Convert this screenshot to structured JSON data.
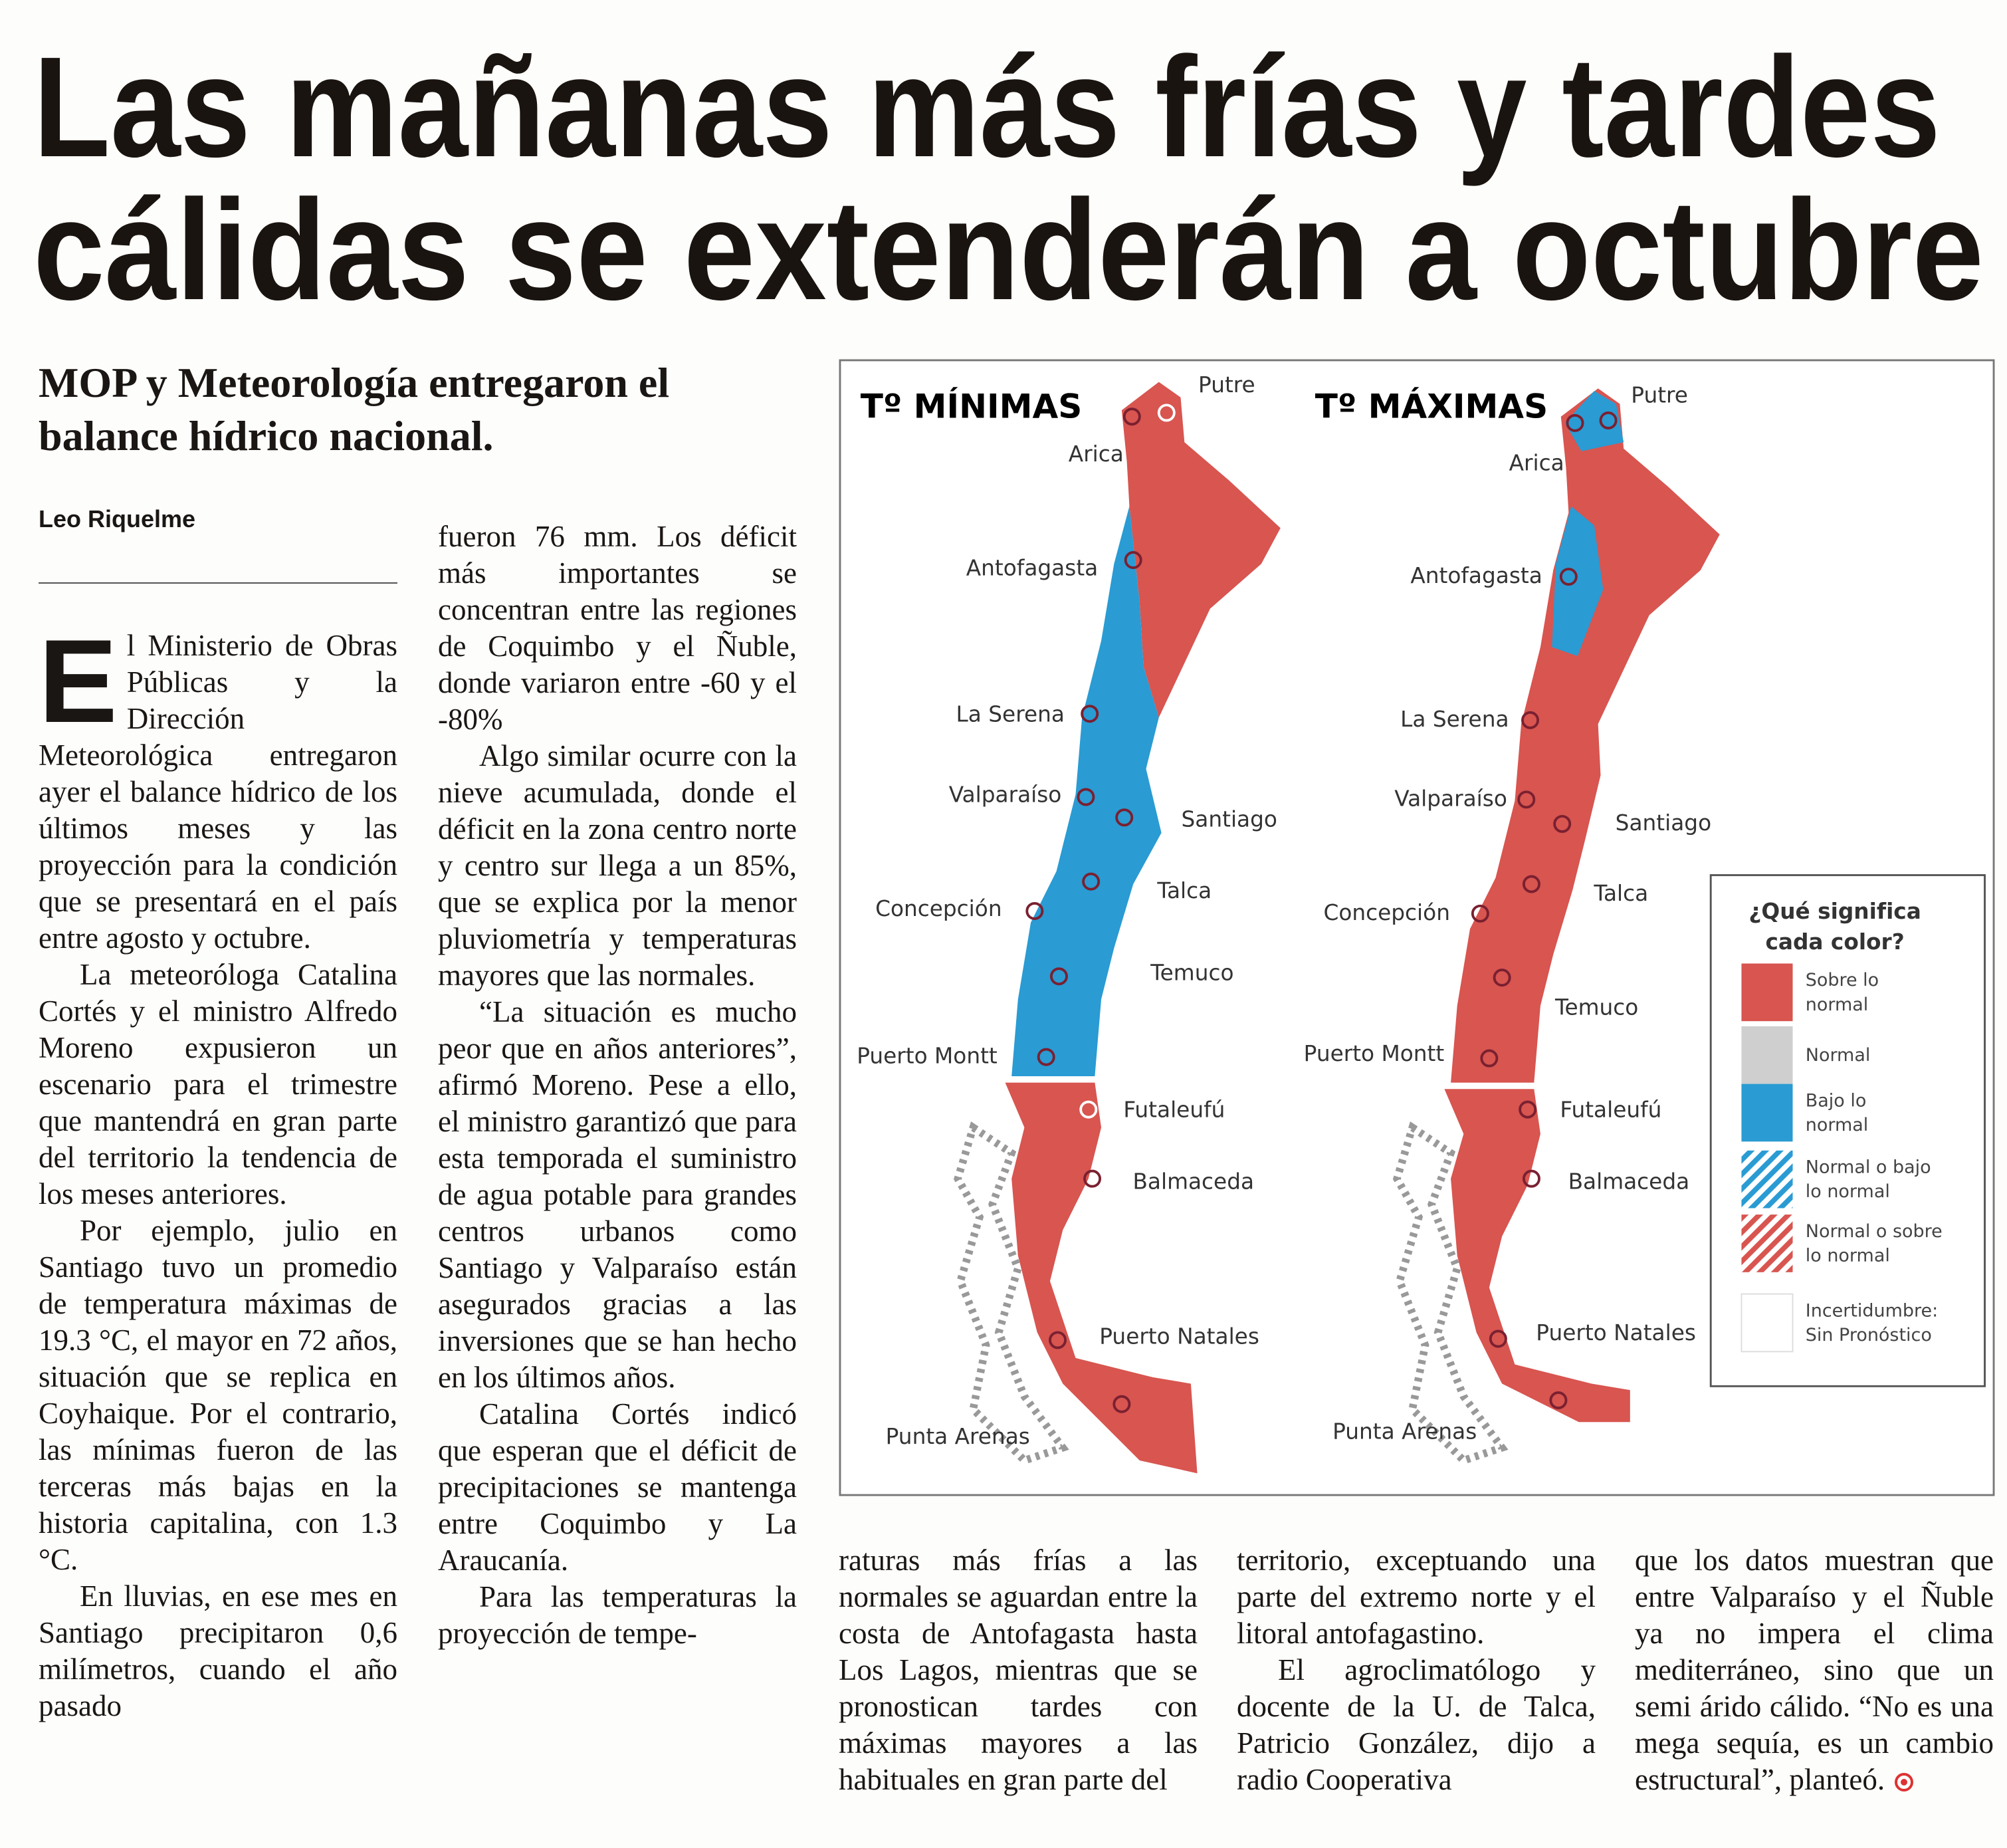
{
  "header": {
    "title_lines": [
      "Las mañanas más frías y tardes",
      "cálidas se extenderán a octubre"
    ],
    "subtitle": "MOP y Meteorología entregaron el balance hídrico nacional.",
    "byline": "Leo Riquelme"
  },
  "lead": {
    "drop_cap": "E",
    "text": "l Ministerio de Obras Públicas y la Dirección Meteorológica entregaron ayer el balance hídrico de los últimos meses y las proyección para la condición que se presentará en el país entre agosto y octubre."
  },
  "columns": [
    {
      "paragraphs": [
        "La meteoróloga Catalina Cortés y el ministro Alfredo Moreno expusieron un escenario para el trimestre que mantendrá en gran parte del territorio la tendencia de los meses anteriores.",
        "Por ejemplo, julio en Santiago tuvo un promedio de temperatura máximas de 19.3 °C, el mayor en 72 años, situación que se replica en Coyhaique. Por el contrario, las mínimas fueron de las terceras más bajas en la historia capitalina, con 1.3 °C.",
        "En lluvias, en ese mes en Santiago precipitaron 0,6 milímetros, cuando el año pasado"
      ]
    },
    {
      "paragraphs": [
        "fueron 76 mm. Los déficit más importantes se concentran entre las regiones de Coquimbo y el Ñuble, donde variaron entre -60 y el -80%",
        "Algo similar ocurre con la nieve acumulada, donde el déficit en la zona centro norte y centro sur llega a un 85%, que se explica por la menor pluviometría y temperaturas mayores que las normales.",
        "“La situación es mucho peor que en años anteriores”, afirmó Moreno. Pese a ello, el ministro garantizó que para esta temporada el suministro de agua potable para grandes centros urbanos como Santiago y Valparaíso están asegurados gracias a las inversiones que se han hecho en los últimos años.",
        "Catalina Cortés indicó que esperan que el déficit de precipitaciones se mantenga entre Coquimbo y La Araucanía.",
        "Para las temperaturas la proyección de tempe-"
      ]
    },
    {
      "paragraphs": [
        "raturas más frías a las normales se aguardan entre la costa de Antofagasta hasta Los Lagos, mientras que se pronostican tardes con máximas mayores a las habituales en gran parte del"
      ]
    },
    {
      "paragraphs": [
        "territorio, exceptuando una parte del extremo norte y el litoral antofagastino.",
        "El agroclimatólogo y docente de la U. de Talca, Patricio González, dijo a radio Cooperativa"
      ]
    },
    {
      "paragraphs": [
        "que los datos muestran que entre Valparaíso y el Ñuble ya no impera el clima mediterráneo, sino que un semi árido cálido. “No es una mega sequía, es un cambio estructural”, planteó."
      ]
    }
  ],
  "maps": [
    {
      "title": "Tº MÍNIMAS",
      "cities": [
        "Putre",
        "Arica",
        "Antofagasta",
        "La Serena",
        "Valparaíso",
        "Santiago",
        "Talca",
        "Concepción",
        "Temuco",
        "Puerto Montt",
        "Futaleufú",
        "Balmaceda",
        "Puerto Natales",
        "Punta Arenas"
      ]
    },
    {
      "title": "Tº MÁXIMAS",
      "cities": [
        "Putre",
        "Arica",
        "Antofagasta",
        "La Serena",
        "Valparaíso",
        "Santiago",
        "Talca",
        "Concepción",
        "Temuco",
        "Puerto Montt",
        "Futaleufú",
        "Balmaceda",
        "Puerto Natales",
        "Punta Arenas"
      ]
    }
  ],
  "legend": {
    "title_lines": [
      "¿Qué significa",
      "cada color?"
    ],
    "items": [
      {
        "lines": [
          "Sobre lo",
          "normal"
        ]
      },
      {
        "lines": [
          "Normal"
        ]
      },
      {
        "lines": [
          "Bajo lo",
          "normal"
        ]
      },
      {
        "lines": [
          "Normal o bajo",
          "lo normal"
        ]
      },
      {
        "lines": [
          "Normal o sobre",
          "lo normal"
        ]
      },
      {
        "lines": [
          "Incertidumbre:",
          "Sin Pronóstico"
        ]
      }
    ]
  }
}
